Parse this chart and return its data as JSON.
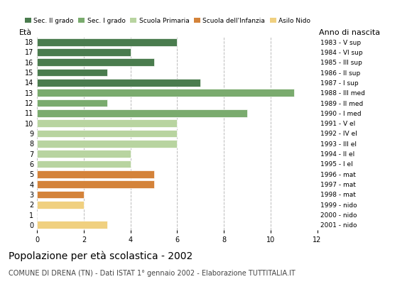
{
  "ages": [
    0,
    1,
    2,
    3,
    4,
    5,
    6,
    7,
    8,
    9,
    10,
    11,
    12,
    13,
    14,
    15,
    16,
    17,
    18
  ],
  "values": [
    3,
    0,
    2,
    2,
    5,
    5,
    4,
    4,
    6,
    6,
    6,
    9,
    3,
    11,
    7,
    3,
    5,
    4,
    6
  ],
  "anno_nascita": [
    "2001 - nido",
    "2000 - nido",
    "1999 - nido",
    "1998 - mat",
    "1997 - mat",
    "1996 - mat",
    "1995 - I el",
    "1994 - II el",
    "1993 - III el",
    "1992 - IV el",
    "1991 - V el",
    "1990 - I med",
    "1989 - II med",
    "1988 - III med",
    "1987 - I sup",
    "1986 - II sup",
    "1985 - III sup",
    "1984 - VI sup",
    "1983 - V sup"
  ],
  "bar_colors": [
    "#f0d080",
    "#f0d080",
    "#f0d080",
    "#d4833a",
    "#d4833a",
    "#d4833a",
    "#b8d4a0",
    "#b8d4a0",
    "#b8d4a0",
    "#b8d4a0",
    "#b8d4a0",
    "#7aab6e",
    "#7aab6e",
    "#7aab6e",
    "#4a7c4e",
    "#4a7c4e",
    "#4a7c4e",
    "#4a7c4e",
    "#4a7c4e"
  ],
  "legend_labels": [
    "Sec. II grado",
    "Sec. I grado",
    "Scuola Primaria",
    "Scuola dell'Infanzia",
    "Asilo Nido"
  ],
  "legend_colors": [
    "#4a7c4e",
    "#7aab6e",
    "#b8d4a0",
    "#d4833a",
    "#f0d080"
  ],
  "title": "Popolazione per età scolastica - 2002",
  "subtitle": "COMUNE DI DRENA (TN) - Dati ISTAT 1° gennaio 2002 - Elaborazione TUTTITALIA.IT",
  "ylabel_left": "Età",
  "ylabel_right": "Anno di nascita",
  "xlim": [
    0,
    12
  ],
  "xticks": [
    0,
    2,
    4,
    6,
    8,
    10,
    12
  ],
  "background_color": "#ffffff",
  "grid_color": "#bbbbbb"
}
